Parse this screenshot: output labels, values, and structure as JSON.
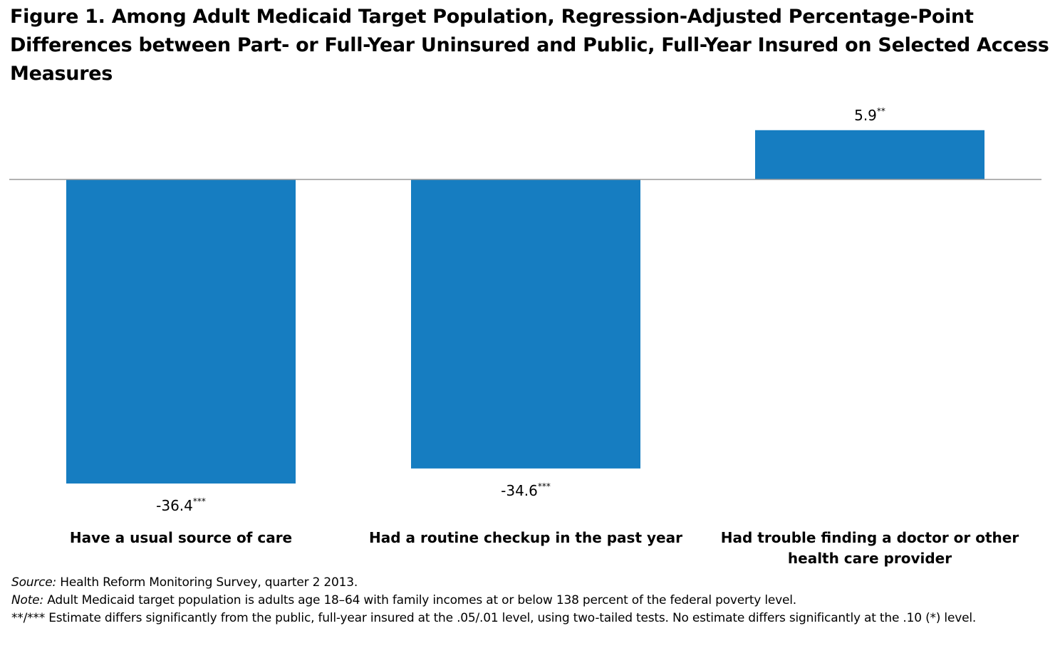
{
  "chart_data": {
    "type": "bar",
    "title": "Figure 1. Among Adult Medicaid Target Population, Regression-Adjusted Percentage-Point Differences between Part- or Full-Year Uninsured and Public, Full-Year Insured on Selected Access Measures",
    "categories": [
      [
        "Have a usual source of care"
      ],
      [
        "Had a routine checkup in the past year"
      ],
      [
        "Had trouble finding a doctor or other",
        "health care provider"
      ]
    ],
    "values": [
      -36.4,
      -34.6,
      5.9
    ],
    "value_labels": [
      "-36.4",
      "-34.6",
      "5.9"
    ],
    "significance": [
      "***",
      "***",
      "**"
    ],
    "bar_color": "#167DC1",
    "baseline_color": "#999999",
    "ylim": [
      -36.4,
      5.9
    ],
    "grid": false,
    "legend": "none",
    "xlabel": "",
    "ylabel": ""
  },
  "notes": {
    "source_label": "Source:",
    "source_text": " Health Reform Monitoring Survey, quarter 2 2013.",
    "note_label": "Note:",
    "note_text": " Adult Medicaid target population is adults age 18–64 with family incomes at or below 138 percent of the federal poverty level.",
    "sig_marker": "**/***",
    "sig_text": " Estimate differs significantly from the public, full-year insured at the .05/.01 level, using two-tailed tests. No estimate differs significantly at the .10 (*) level."
  }
}
